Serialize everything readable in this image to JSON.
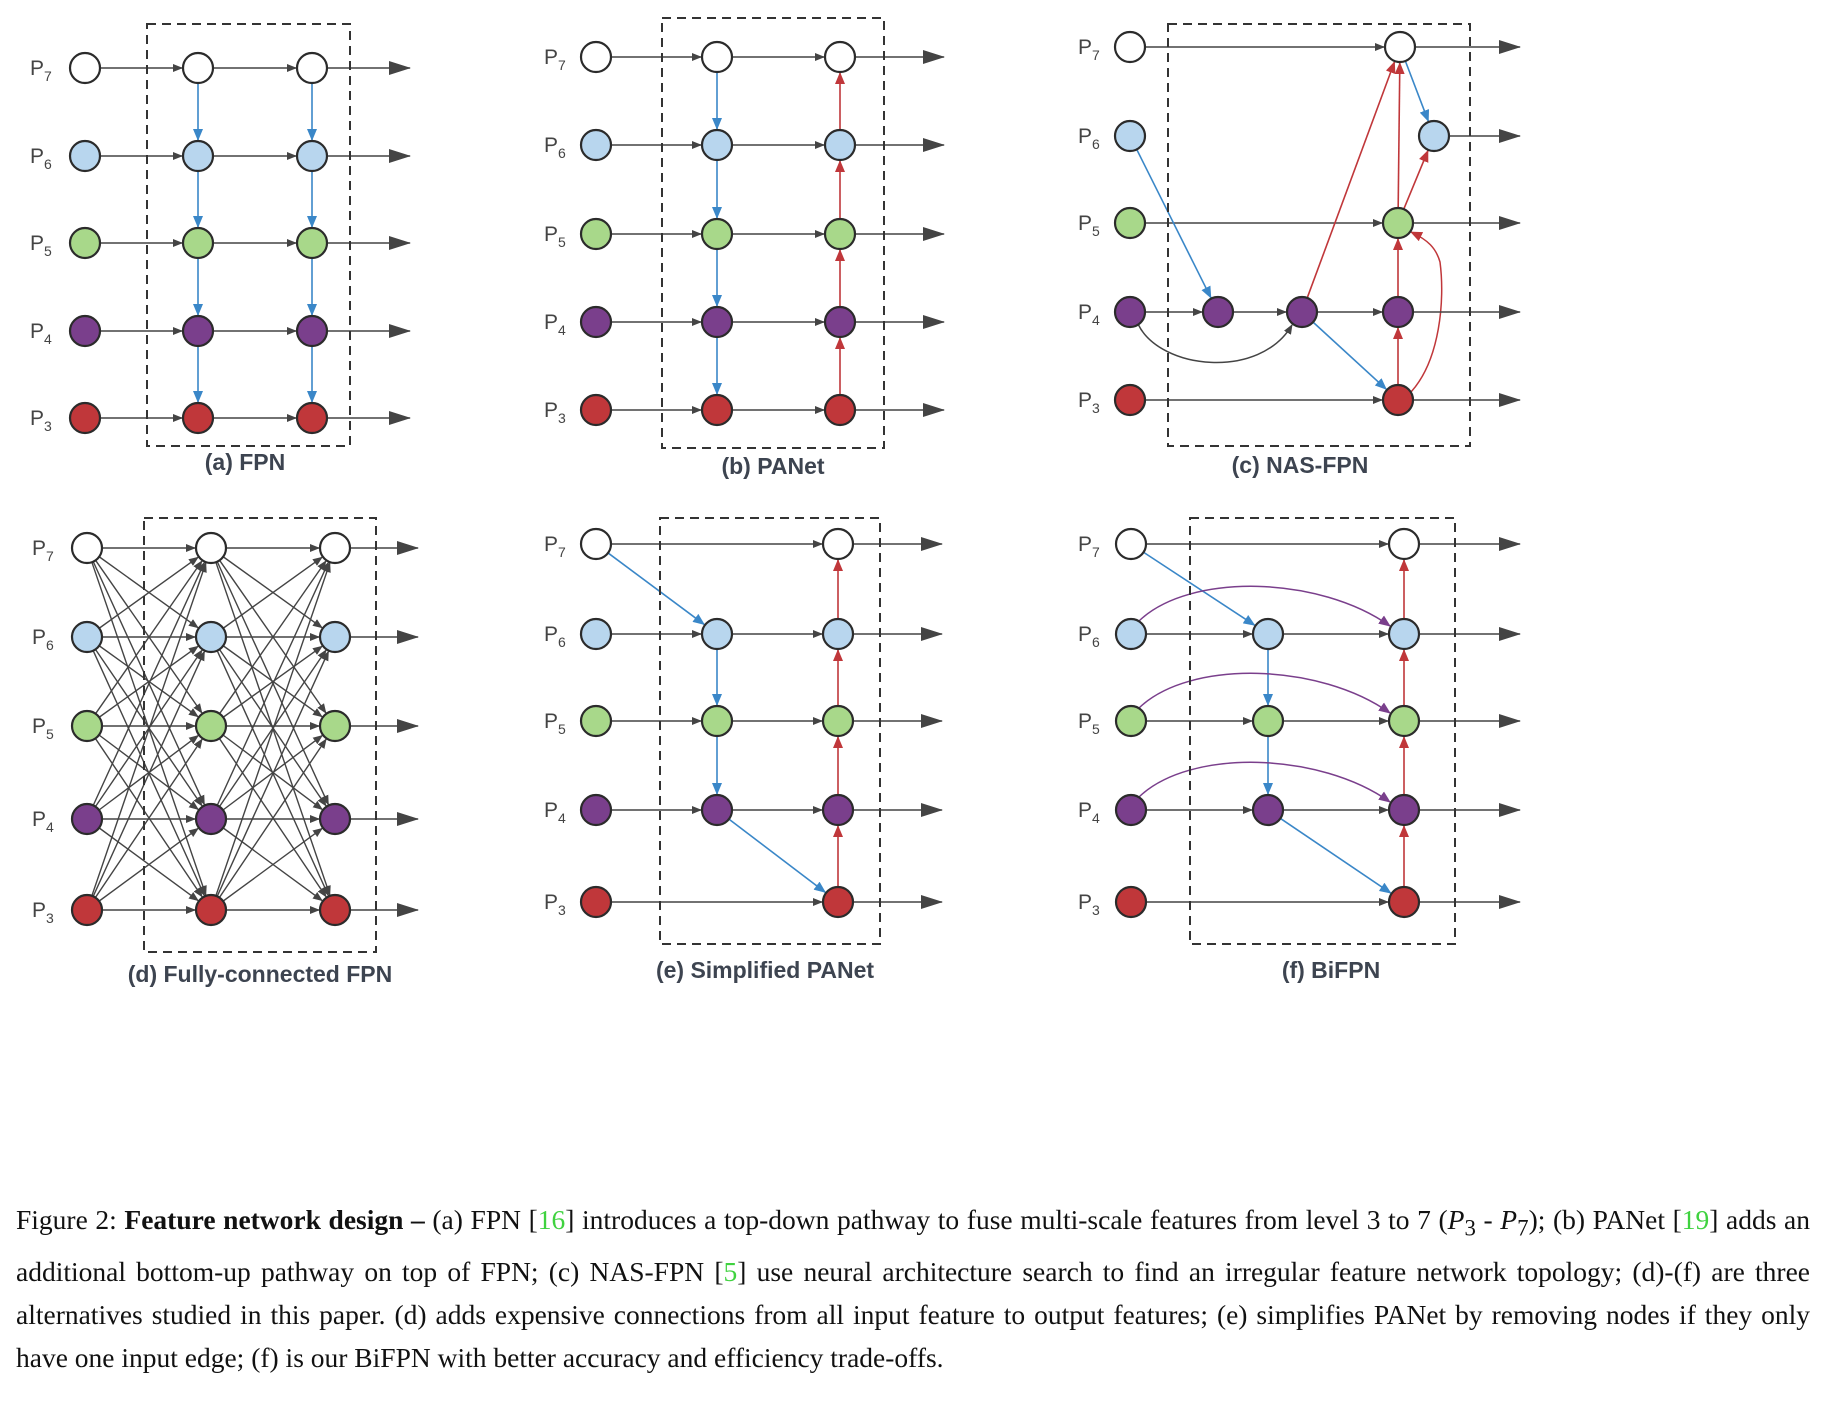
{
  "levels": [
    {
      "base": "P",
      "sub": "7"
    },
    {
      "base": "P",
      "sub": "6"
    },
    {
      "base": "P",
      "sub": "5"
    },
    {
      "base": "P",
      "sub": "4"
    },
    {
      "base": "P",
      "sub": "3"
    }
  ],
  "level_colors": [
    "#ffffff",
    "#b8d6ee",
    "#a8d88a",
    "#7a3f8c",
    "#c0373a"
  ],
  "edge_colors": {
    "lateral": "#333333",
    "top_down": "#3a87c8",
    "bottom_up": "#c0373a",
    "skip": "#7a3f8c"
  },
  "panels": [
    {
      "id": "a",
      "label": "(a) FPN"
    },
    {
      "id": "b",
      "label": "(b) PANet"
    },
    {
      "id": "c",
      "label": "(c) NAS-FPN"
    },
    {
      "id": "d",
      "label": "(d) Fully-connected FPN"
    },
    {
      "id": "e",
      "label": "(e) Simplified PANet"
    },
    {
      "id": "f",
      "label": "(f) BiFPN"
    }
  ],
  "caption": {
    "prefix": "Figure 2: ",
    "title": "Feature network design – ",
    "parts": [
      {
        "text": "(a) FPN ["
      },
      {
        "ref": "16"
      },
      {
        "text": "] introduces a top-down pathway to fuse multi-scale features from level 3 to 7 ("
      },
      {
        "math": "P",
        "sub": "3"
      },
      {
        "text": " - "
      },
      {
        "math": "P",
        "sub": "7"
      },
      {
        "text": "); (b) PANet ["
      },
      {
        "ref": "19"
      },
      {
        "text": "] adds an additional bottom-up pathway on top of FPN; (c) NAS-FPN ["
      },
      {
        "ref": "5"
      },
      {
        "text": "] use neural architecture search to find an irregular feature network topology; (d)-(f) are three alternatives studied in this paper. (d) adds expensive connections from all input feature to output features; (e) simplifies PANet by removing nodes if they only have one input edge; (f) is our BiFPN with better accuracy and efficiency trade-offs."
      }
    ]
  }
}
